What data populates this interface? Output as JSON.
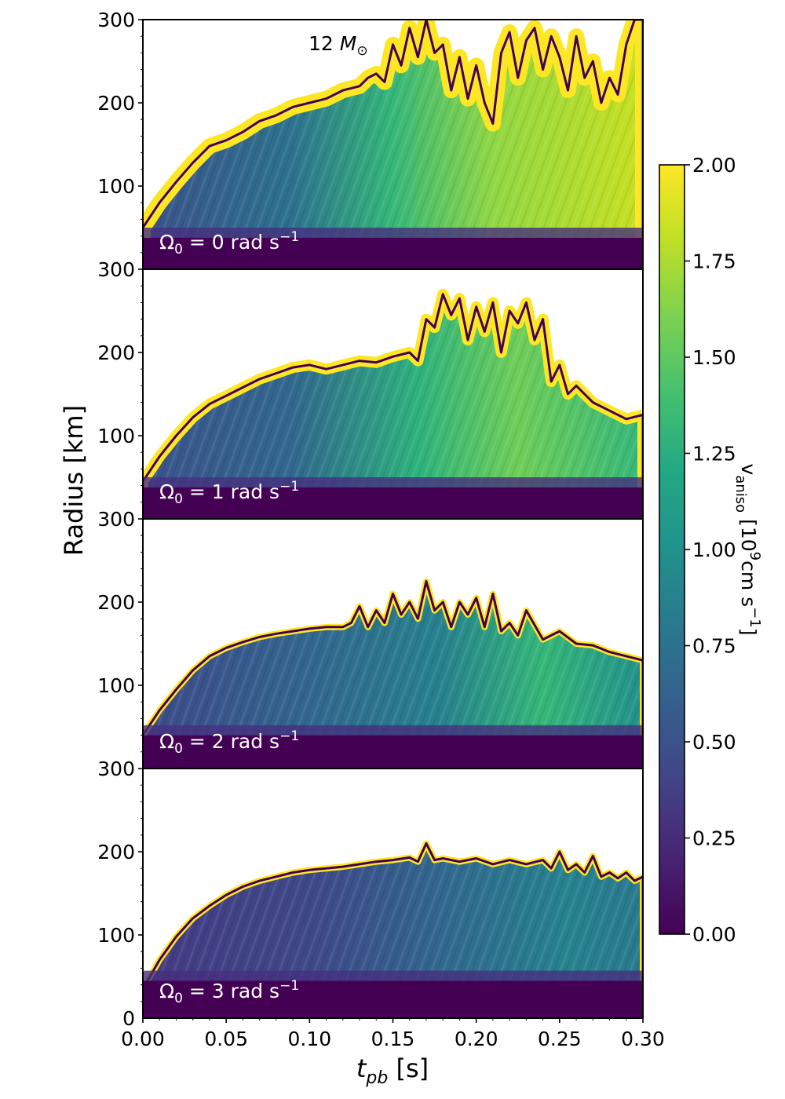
{
  "chart_data": {
    "type": "heatmap",
    "title": "",
    "mass_label": "12",
    "mass_symbol": "M",
    "mass_sub": "⊙",
    "xlabel": {
      "main": "t",
      "sub": "pb",
      "unit": " [s]"
    },
    "ylabel": "Radius [km]",
    "xlim": [
      0.0,
      0.3
    ],
    "ylim": [
      0,
      300
    ],
    "x_ticks": [
      "0.00",
      "0.05",
      "0.10",
      "0.15",
      "0.20",
      "0.25",
      "0.30"
    ],
    "x_tick_values": [
      0.0,
      0.05,
      0.1,
      0.15,
      0.2,
      0.25,
      0.3
    ],
    "y_tick_values": [
      100,
      200,
      300
    ],
    "y_tick_labels": [
      "100",
      "200",
      "300"
    ],
    "bottom_y_zero_label": "0",
    "colormap": "viridis",
    "colorbar": {
      "label": {
        "prefix": "v",
        "sub": "aniso",
        "unit": " [10",
        "exp": "9",
        "unit2": "cm s",
        "exp2": "−1",
        "close": "]"
      },
      "range": [
        0.0,
        2.0
      ],
      "ticks": [
        "0.00",
        "0.25",
        "0.50",
        "0.75",
        "1.00",
        "1.25",
        "1.50",
        "1.75",
        "2.00"
      ],
      "tick_values": [
        0.0,
        0.25,
        0.5,
        0.75,
        1.0,
        1.25,
        1.5,
        1.75,
        2.0
      ]
    },
    "panels": [
      {
        "omega": "0",
        "omega_label": {
          "sym": "Ω",
          "sub": "0",
          "eq": " = 0 rad s",
          "exp": "−1"
        },
        "shock_radius": {
          "t": [
            0.0,
            0.01,
            0.02,
            0.03,
            0.04,
            0.05,
            0.06,
            0.07,
            0.08,
            0.09,
            0.1,
            0.11,
            0.12,
            0.13,
            0.135,
            0.14,
            0.145,
            0.15,
            0.155,
            0.16,
            0.165,
            0.17,
            0.175,
            0.18,
            0.185,
            0.19,
            0.195,
            0.2,
            0.205,
            0.21,
            0.215,
            0.22,
            0.225,
            0.23,
            0.235,
            0.24,
            0.245,
            0.25,
            0.255,
            0.26,
            0.265,
            0.27,
            0.275,
            0.28,
            0.285,
            0.29,
            0.295,
            0.3
          ],
          "r": [
            50,
            80,
            105,
            128,
            148,
            155,
            165,
            178,
            185,
            195,
            200,
            205,
            215,
            220,
            230,
            235,
            225,
            270,
            245,
            290,
            255,
            300,
            260,
            270,
            215,
            255,
            205,
            245,
            200,
            175,
            260,
            285,
            230,
            275,
            290,
            240,
            280,
            255,
            215,
            280,
            230,
            250,
            200,
            230,
            210,
            270,
            300,
            300
          ]
        },
        "pns_radius": 38
      },
      {
        "omega": "1",
        "omega_label": {
          "sym": "Ω",
          "sub": "0",
          "eq": " = 1 rad s",
          "exp": "−1"
        },
        "shock_radius": {
          "t": [
            0.0,
            0.01,
            0.02,
            0.03,
            0.04,
            0.05,
            0.06,
            0.07,
            0.08,
            0.09,
            0.1,
            0.11,
            0.12,
            0.13,
            0.14,
            0.15,
            0.16,
            0.165,
            0.17,
            0.175,
            0.18,
            0.185,
            0.19,
            0.195,
            0.2,
            0.205,
            0.21,
            0.215,
            0.22,
            0.225,
            0.23,
            0.235,
            0.24,
            0.245,
            0.25,
            0.255,
            0.26,
            0.27,
            0.28,
            0.29,
            0.3
          ],
          "r": [
            45,
            75,
            100,
            122,
            138,
            148,
            158,
            168,
            175,
            182,
            185,
            180,
            185,
            190,
            188,
            195,
            200,
            190,
            240,
            230,
            270,
            245,
            265,
            215,
            255,
            225,
            260,
            200,
            250,
            235,
            260,
            215,
            240,
            165,
            185,
            150,
            160,
            140,
            130,
            120,
            125
          ]
        },
        "pns_radius": 38
      },
      {
        "omega": "2",
        "omega_label": {
          "sym": "Ω",
          "sub": "0",
          "eq": " = 2 rad s",
          "exp": "−1"
        },
        "shock_radius": {
          "t": [
            0.0,
            0.01,
            0.02,
            0.03,
            0.04,
            0.05,
            0.06,
            0.07,
            0.08,
            0.09,
            0.1,
            0.11,
            0.12,
            0.125,
            0.13,
            0.135,
            0.14,
            0.145,
            0.15,
            0.155,
            0.16,
            0.165,
            0.17,
            0.175,
            0.18,
            0.185,
            0.19,
            0.195,
            0.2,
            0.205,
            0.21,
            0.215,
            0.22,
            0.225,
            0.23,
            0.24,
            0.25,
            0.26,
            0.27,
            0.28,
            0.29,
            0.3
          ],
          "r": [
            40,
            70,
            95,
            118,
            135,
            145,
            152,
            158,
            162,
            165,
            168,
            170,
            170,
            175,
            195,
            170,
            190,
            175,
            210,
            185,
            200,
            180,
            225,
            190,
            200,
            170,
            200,
            185,
            205,
            170,
            210,
            165,
            175,
            160,
            190,
            155,
            165,
            150,
            148,
            140,
            135,
            130
          ]
        },
        "pns_radius": 40
      },
      {
        "omega": "3",
        "omega_label": {
          "sym": "Ω",
          "sub": "0",
          "eq": " = 3 rad s",
          "exp": "−1"
        },
        "shock_radius": {
          "t": [
            0.0,
            0.01,
            0.02,
            0.03,
            0.04,
            0.05,
            0.06,
            0.07,
            0.08,
            0.09,
            0.1,
            0.11,
            0.12,
            0.13,
            0.14,
            0.15,
            0.16,
            0.165,
            0.17,
            0.175,
            0.18,
            0.19,
            0.2,
            0.21,
            0.22,
            0.23,
            0.24,
            0.245,
            0.25,
            0.255,
            0.26,
            0.265,
            0.27,
            0.275,
            0.28,
            0.285,
            0.29,
            0.295,
            0.3
          ],
          "r": [
            35,
            70,
            98,
            120,
            135,
            148,
            158,
            165,
            170,
            175,
            178,
            180,
            182,
            185,
            188,
            190,
            193,
            188,
            210,
            190,
            192,
            188,
            192,
            185,
            190,
            185,
            190,
            180,
            200,
            178,
            185,
            175,
            195,
            170,
            175,
            168,
            175,
            165,
            170
          ]
        },
        "pns_radius": 45
      }
    ]
  }
}
